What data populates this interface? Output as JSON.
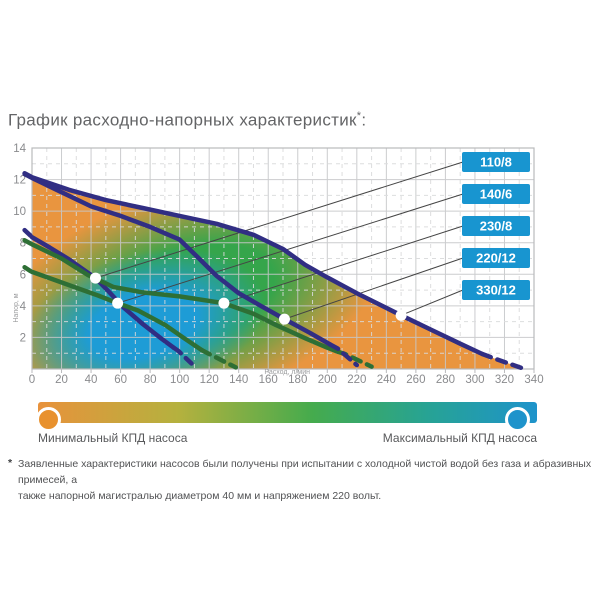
{
  "title": {
    "text": "График расходно-напорных характеристик",
    "sup": "*",
    "colon": ":"
  },
  "chart_data": {
    "type": "line",
    "title": "График расходно-напорных характеристик",
    "xlabel": "Расход, л/мин",
    "ylabel": "Напор, м",
    "xlim": [
      0,
      340
    ],
    "ylim": [
      0,
      14
    ],
    "x_ticks": [
      0,
      20,
      40,
      60,
      80,
      100,
      120,
      140,
      160,
      180,
      200,
      220,
      240,
      260,
      280,
      300,
      320,
      340
    ],
    "y_ticks": [
      2,
      4,
      6,
      8,
      10,
      12,
      14
    ],
    "grid": "major solid, minor dashed",
    "legend_position": "right callout boxes",
    "series": [
      {
        "name": "110/8",
        "color": "navy",
        "head": [
          [
            -5,
            8.8
          ],
          [
            -1,
            8.45
          ]
        ],
        "points": [
          [
            0,
            8.35
          ],
          [
            12,
            7.7
          ],
          [
            25,
            6.95
          ],
          [
            43,
            5.76
          ],
          [
            52,
            4.9
          ],
          [
            62,
            3.9
          ],
          [
            75,
            2.85
          ],
          [
            88,
            1.9
          ],
          [
            96,
            1.35
          ]
        ],
        "tail": [
          [
            99,
            1.15
          ],
          [
            108,
            0.35
          ]
        ],
        "marker": [
          43,
          5.76
        ]
      },
      {
        "name": "140/6",
        "color": "green",
        "head": [
          [
            -5,
            6.45
          ],
          [
            -1,
            6.2
          ]
        ],
        "points": [
          [
            0,
            6.15
          ],
          [
            15,
            5.65
          ],
          [
            30,
            5.15
          ],
          [
            45,
            4.65
          ],
          [
            58,
            4.17
          ],
          [
            72,
            3.7
          ],
          [
            90,
            2.8
          ],
          [
            103,
            1.95
          ],
          [
            115,
            1.2
          ]
        ],
        "tail": [
          [
            119,
            1.0
          ],
          [
            138,
            0.1
          ]
        ],
        "marker": [
          58,
          4.17
        ]
      },
      {
        "name": "230/8",
        "color": "green",
        "head": [
          [
            -5,
            8.15
          ],
          [
            -1,
            7.95
          ]
        ],
        "points": [
          [
            0,
            7.9
          ],
          [
            20,
            7.0
          ],
          [
            38,
            5.95
          ],
          [
            55,
            5.2
          ],
          [
            75,
            4.85
          ],
          [
            100,
            4.6
          ],
          [
            130,
            4.17
          ],
          [
            150,
            3.5
          ],
          [
            165,
            2.8
          ],
          [
            185,
            1.95
          ],
          [
            200,
            1.35
          ],
          [
            207,
            1.1
          ]
        ],
        "tail": [
          [
            212,
            0.95
          ],
          [
            230,
            0.15
          ]
        ],
        "marker": [
          130,
          4.17
        ]
      },
      {
        "name": "220/12",
        "color": "navy",
        "head": [
          [
            -5,
            12.35
          ],
          [
            -1,
            12.15
          ]
        ],
        "points": [
          [
            0,
            12.1
          ],
          [
            20,
            11.2
          ],
          [
            40,
            10.3
          ],
          [
            60,
            9.7
          ],
          [
            80,
            9.0
          ],
          [
            100,
            8.2
          ],
          [
            112,
            7.1
          ],
          [
            125,
            5.9
          ],
          [
            140,
            4.8
          ],
          [
            155,
            4.0
          ],
          [
            171,
            3.16
          ],
          [
            188,
            2.3
          ],
          [
            202,
            1.55
          ]
        ],
        "tail": [
          [
            207,
            1.3
          ],
          [
            220,
            0.25
          ]
        ],
        "marker": [
          171,
          3.16
        ]
      },
      {
        "name": "330/12",
        "color": "navy",
        "head": [
          [
            -5,
            12.4
          ],
          [
            -1,
            12.2
          ]
        ],
        "points": [
          [
            0,
            12.15
          ],
          [
            25,
            11.35
          ],
          [
            50,
            10.7
          ],
          [
            75,
            10.2
          ],
          [
            100,
            9.7
          ],
          [
            125,
            9.2
          ],
          [
            150,
            8.5
          ],
          [
            170,
            7.6
          ],
          [
            185,
            6.6
          ],
          [
            200,
            5.8
          ],
          [
            220,
            4.8
          ],
          [
            235,
            4.1
          ],
          [
            250,
            3.4
          ],
          [
            270,
            2.5
          ],
          [
            290,
            1.6
          ],
          [
            305,
            0.95
          ]
        ],
        "tail": [
          [
            312,
            0.7
          ],
          [
            332,
            0.05
          ]
        ],
        "marker": [
          250,
          3.4
        ]
      }
    ],
    "efficiency_map": {
      "description": "orange = low efficiency, green = mid, blue = max efficiency zone under outermost curve",
      "orange": "#e9953f",
      "green": "#35a54b",
      "blue": "#1e9cd6"
    }
  },
  "colors": {
    "navy": "#312e83",
    "green": "#2e6f35",
    "label_box": "#1895d0",
    "label_text": "#ffffff",
    "map_orange": "#e9953f",
    "map_green": "#35a54b",
    "map_blue": "#1e9cd6",
    "grid_major": "#c6c7c9",
    "grid_minor": "#d9dadb",
    "frame": "#b9babc",
    "tick_text": "#8a8b8e",
    "axis_title_text": "#9a9b9d",
    "callout": "#454545",
    "marker": "#ffffff",
    "legend_orange": "#e8912e",
    "legend_blue": "#1e93cb"
  },
  "legend": {
    "gradient": [
      "#e8923c",
      "#b5b13e",
      "#45ab4d",
      "#27a394",
      "#1e93cb"
    ],
    "min_line1": "Минимальный",
    "min_line2": "КПД насоса",
    "max_line1": "Максимальный",
    "max_line2": "КПД насоса"
  },
  "footnote": {
    "star": "*",
    "line1": "Заявленные характеристики насосов были получены при испытании с холодной чистой водой без газа и абразивных примесей, а",
    "line2": "также напорной магистралью диаметром 40 мм и напряжением 220 вольт."
  }
}
